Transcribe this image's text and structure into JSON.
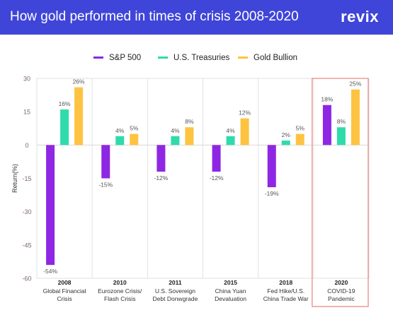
{
  "header": {
    "title": "How gold performed in times of crisis 2008-2020",
    "brand": "revix"
  },
  "colors": {
    "banner": "#3f45d8",
    "highlight_box": "#e8827c"
  },
  "chart_data": {
    "type": "bar",
    "title": "How gold performed in times of crisis 2008-2020",
    "ylabel": "Return(%)",
    "ylim": [
      -60,
      30
    ],
    "yticks": [
      30,
      15,
      0,
      -15,
      -30,
      -45,
      -60
    ],
    "legend_position": "top-center",
    "grid": "vertical category separators",
    "highlighted_category_index": 5,
    "categories": [
      {
        "year": "2008",
        "line1": "Global Financial",
        "line2": "Crisis"
      },
      {
        "year": "2010",
        "line1": "Eurozone Crisis/",
        "line2": "Flash Crisis"
      },
      {
        "year": "2011",
        "line1": "U.S. Sovereign",
        "line2": "Debt Donwgrade"
      },
      {
        "year": "2015",
        "line1": "China Yuan",
        "line2": "Devaluation"
      },
      {
        "year": "2018",
        "line1": "Fed Hike/U.S.",
        "line2": "China Trade War"
      },
      {
        "year": "2020",
        "line1": "COVID-19",
        "line2": "Pandemic"
      }
    ],
    "series": [
      {
        "name": "S&P 500",
        "color": "#8e27e3",
        "values": [
          -54,
          -15,
          -12,
          -12,
          -19,
          18
        ],
        "labels": [
          "-54%",
          "-15%",
          "-12%",
          "-12%",
          "-19%",
          "18%"
        ]
      },
      {
        "name": "U.S. Treasuries",
        "color": "#2fdbaa",
        "values": [
          16,
          4,
          4,
          4,
          2,
          8
        ],
        "labels": [
          "16%",
          "4%",
          "4%",
          "4%",
          "2%",
          "8%"
        ]
      },
      {
        "name": "Gold Bullion",
        "color": "#fec340",
        "values": [
          26,
          5,
          8,
          12,
          5,
          25
        ],
        "labels": [
          "26%",
          "5%",
          "8%",
          "12%",
          "5%",
          "25%"
        ]
      }
    ]
  }
}
